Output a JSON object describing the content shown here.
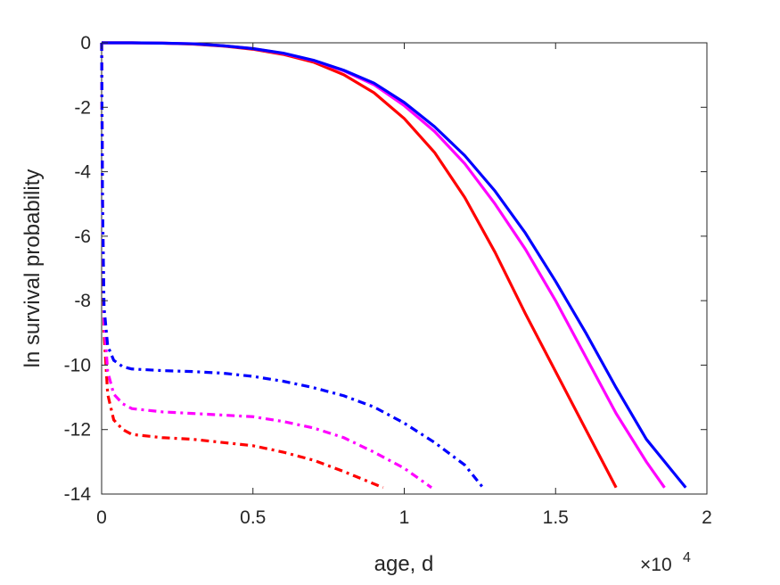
{
  "chart_data": {
    "type": "line",
    "xlabel": "age, d",
    "ylabel": "ln survival probability",
    "x_exponent_label": {
      "base": "×10",
      "power": "4"
    },
    "xlim": [
      0,
      20000
    ],
    "ylim": [
      -14,
      0
    ],
    "x_ticks": [
      0,
      5000,
      10000,
      15000,
      20000
    ],
    "x_tick_labels": [
      "0",
      "0.5",
      "1",
      "1.5",
      "2"
    ],
    "y_ticks": [
      0,
      -2,
      -4,
      -6,
      -8,
      -10,
      -12,
      -14
    ],
    "y_tick_labels": [
      "0",
      "-2",
      "-4",
      "-6",
      "-8",
      "-10",
      "-12",
      "-14"
    ],
    "grid": false,
    "series": [
      {
        "color": "#ff0000",
        "style": "solid",
        "points": [
          [
            0,
            0
          ],
          [
            1000,
            0
          ],
          [
            2000,
            -0.01
          ],
          [
            3000,
            -0.04
          ],
          [
            4000,
            -0.1
          ],
          [
            5000,
            -0.2
          ],
          [
            6000,
            -0.36
          ],
          [
            7000,
            -0.6
          ],
          [
            8000,
            -0.99
          ],
          [
            9000,
            -1.55
          ],
          [
            10000,
            -2.35
          ],
          [
            11000,
            -3.4
          ],
          [
            12000,
            -4.8
          ],
          [
            13000,
            -6.5
          ],
          [
            14000,
            -8.4
          ],
          [
            15000,
            -10.2
          ],
          [
            16000,
            -12.0
          ],
          [
            17000,
            -13.8
          ]
        ]
      },
      {
        "color": "#ff00ff",
        "style": "solid",
        "points": [
          [
            0,
            0
          ],
          [
            1000,
            0
          ],
          [
            2000,
            -0.01
          ],
          [
            3000,
            -0.03
          ],
          [
            4000,
            -0.09
          ],
          [
            5000,
            -0.18
          ],
          [
            6000,
            -0.33
          ],
          [
            7000,
            -0.55
          ],
          [
            8000,
            -0.87
          ],
          [
            9000,
            -1.3
          ],
          [
            10000,
            -1.95
          ],
          [
            11000,
            -2.75
          ],
          [
            12000,
            -3.75
          ],
          [
            13000,
            -5.0
          ],
          [
            14000,
            -6.4
          ],
          [
            15000,
            -8.0
          ],
          [
            16000,
            -9.75
          ],
          [
            17000,
            -11.5
          ],
          [
            18000,
            -13.0
          ],
          [
            18600,
            -13.8
          ]
        ]
      },
      {
        "color": "#0000ff",
        "style": "solid",
        "points": [
          [
            0,
            0
          ],
          [
            1000,
            0
          ],
          [
            2000,
            -0.01
          ],
          [
            3000,
            -0.03
          ],
          [
            4000,
            -0.09
          ],
          [
            5000,
            -0.18
          ],
          [
            6000,
            -0.32
          ],
          [
            7000,
            -0.54
          ],
          [
            8000,
            -0.85
          ],
          [
            9000,
            -1.25
          ],
          [
            10000,
            -1.85
          ],
          [
            11000,
            -2.6
          ],
          [
            12000,
            -3.5
          ],
          [
            13000,
            -4.6
          ],
          [
            14000,
            -5.9
          ],
          [
            15000,
            -7.4
          ],
          [
            16000,
            -9.0
          ],
          [
            17000,
            -10.7
          ],
          [
            18000,
            -12.3
          ],
          [
            19300,
            -13.8
          ]
        ]
      },
      {
        "color": "#ff0000",
        "style": "dashdot",
        "points": [
          [
            0,
            0
          ],
          [
            30,
            -5
          ],
          [
            80,
            -9
          ],
          [
            200,
            -10.9
          ],
          [
            400,
            -11.7
          ],
          [
            700,
            -12.0
          ],
          [
            1000,
            -12.15
          ],
          [
            2000,
            -12.25
          ],
          [
            3000,
            -12.3
          ],
          [
            4000,
            -12.4
          ],
          [
            5000,
            -12.5
          ],
          [
            6000,
            -12.7
          ],
          [
            7000,
            -12.95
          ],
          [
            8000,
            -13.3
          ],
          [
            9300,
            -13.8
          ]
        ]
      },
      {
        "color": "#ff00ff",
        "style": "dashdot",
        "points": [
          [
            0,
            0
          ],
          [
            30,
            -5
          ],
          [
            80,
            -8.6
          ],
          [
            200,
            -10.2
          ],
          [
            400,
            -10.9
          ],
          [
            700,
            -11.2
          ],
          [
            1000,
            -11.35
          ],
          [
            2000,
            -11.45
          ],
          [
            3000,
            -11.5
          ],
          [
            4000,
            -11.55
          ],
          [
            5000,
            -11.6
          ],
          [
            6000,
            -11.75
          ],
          [
            7000,
            -11.95
          ],
          [
            8000,
            -12.25
          ],
          [
            9000,
            -12.7
          ],
          [
            10000,
            -13.2
          ],
          [
            10900,
            -13.8
          ]
        ]
      },
      {
        "color": "#0000ff",
        "style": "dashdot",
        "points": [
          [
            0,
            0
          ],
          [
            30,
            -5
          ],
          [
            80,
            -8.2
          ],
          [
            200,
            -9.4
          ],
          [
            400,
            -9.85
          ],
          [
            700,
            -10.05
          ],
          [
            1000,
            -10.12
          ],
          [
            2000,
            -10.17
          ],
          [
            3000,
            -10.2
          ],
          [
            4000,
            -10.25
          ],
          [
            5000,
            -10.35
          ],
          [
            6000,
            -10.5
          ],
          [
            7000,
            -10.7
          ],
          [
            8000,
            -10.95
          ],
          [
            9000,
            -11.3
          ],
          [
            10000,
            -11.8
          ],
          [
            11000,
            -12.4
          ],
          [
            12000,
            -13.1
          ],
          [
            12600,
            -13.8
          ]
        ]
      }
    ]
  }
}
